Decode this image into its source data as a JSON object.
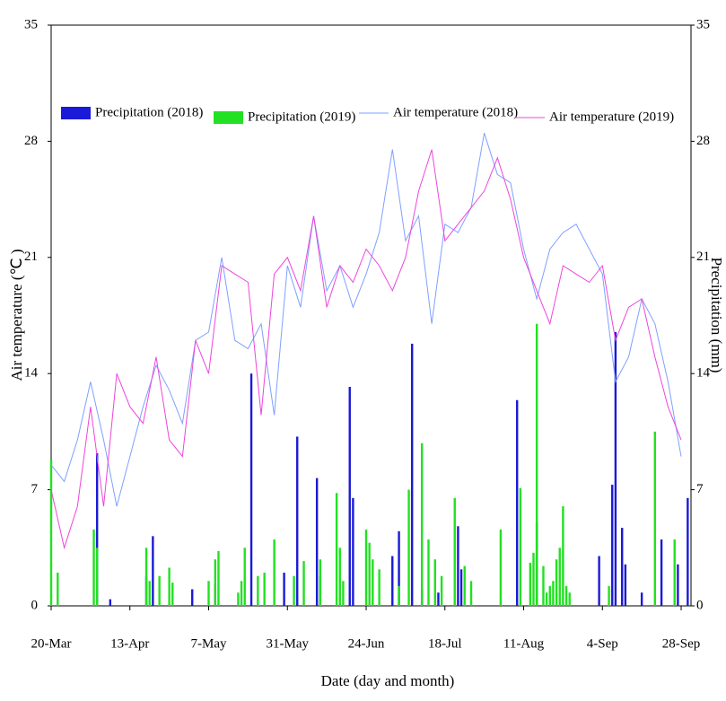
{
  "chart_data": {
    "type": "bar_line",
    "x_label": "Date (day and month)",
    "y_label": "Air temperature (℃ )",
    "y2_label": "Precipitation (mm)",
    "xlim": [
      0,
      195
    ],
    "xticks": [
      {
        "value": 0,
        "label": "20-Mar"
      },
      {
        "value": 24,
        "label": "13-Apr"
      },
      {
        "value": 48,
        "label": "7-May"
      },
      {
        "value": 72,
        "label": "31-May"
      },
      {
        "value": 96,
        "label": "24-Jun"
      },
      {
        "value": 120,
        "label": "18-Jul"
      },
      {
        "value": 144,
        "label": "11-Aug"
      },
      {
        "value": 168,
        "label": "4-Sep"
      },
      {
        "value": 192,
        "label": "28-Sep"
      }
    ],
    "ylim": [
      0,
      35
    ],
    "yticks": [
      0,
      7,
      14,
      21,
      28,
      35
    ],
    "y2lim": [
      0,
      35
    ],
    "y2ticks": [
      0,
      7,
      14,
      21,
      28,
      35
    ],
    "legend": "top",
    "series": [
      {
        "name": "Precipitation  (2018)",
        "type": "bar",
        "axis": "y2",
        "color": "#1a1ad8",
        "x": [
          14,
          18,
          29,
          31,
          43,
          50,
          61,
          71,
          75,
          81,
          82,
          91,
          92,
          104,
          106,
          110,
          113,
          118,
          124,
          125,
          142,
          148,
          167,
          171,
          172,
          174,
          175,
          180,
          186,
          191,
          194
        ],
        "values": [
          9.2,
          0.4,
          1.8,
          4.2,
          1,
          1.3,
          14,
          2,
          10.2,
          7.7,
          1.8,
          13.2,
          6.5,
          3,
          4.5,
          15.8,
          1,
          0.8,
          4.8,
          2.2,
          12.4,
          5,
          3,
          7.3,
          16.5,
          4.7,
          2.5,
          0.8,
          4,
          2.5,
          6.5
        ]
      },
      {
        "name": "Precipitation  (2019)",
        "type": "bar",
        "axis": "y2",
        "color": "#22e022",
        "x": [
          0,
          2,
          13,
          14,
          29,
          30,
          33,
          36,
          37,
          48,
          50,
          51,
          57,
          58,
          59,
          63,
          65,
          68,
          74,
          77,
          82,
          87,
          88,
          89,
          96,
          97,
          98,
          100,
          106,
          109,
          113,
          115,
          117,
          119,
          123,
          126,
          128,
          137,
          143,
          146,
          147,
          148,
          150,
          151,
          152,
          153,
          154,
          155,
          156,
          157,
          158,
          170,
          184,
          190
        ],
        "values": [
          8.8,
          2,
          4.6,
          3.5,
          3.5,
          1.5,
          1.8,
          2.3,
          1.4,
          1.5,
          2.8,
          3.3,
          0.8,
          1.5,
          3.5,
          1.8,
          2,
          4,
          1.8,
          2.7,
          2.8,
          6.8,
          3.5,
          1.5,
          4.6,
          3.8,
          2.8,
          2.2,
          1.2,
          7,
          9.8,
          4,
          2.8,
          1.8,
          6.5,
          2.4,
          1.5,
          4.6,
          7.1,
          2.6,
          3.2,
          17,
          2.4,
          0.8,
          1.2,
          1.5,
          2.8,
          3.5,
          6,
          1.2,
          0.8,
          1.2,
          10.5,
          4
        ]
      },
      {
        "name": "Air temperature (2018)",
        "type": "line",
        "color": "#7fa0ff",
        "x": [
          0,
          4,
          8,
          12,
          16,
          20,
          24,
          28,
          32,
          36,
          40,
          44,
          48,
          52,
          56,
          60,
          64,
          68,
          72,
          76,
          80,
          84,
          88,
          92,
          96,
          100,
          104,
          108,
          112,
          116,
          120,
          124,
          128,
          132,
          136,
          140,
          144,
          148,
          152,
          156,
          160,
          164,
          168,
          172,
          176,
          180,
          184,
          188,
          192
        ],
        "values": [
          8.5,
          7.5,
          10,
          13.5,
          10,
          6,
          9,
          12,
          14.5,
          13,
          11,
          16,
          16.5,
          21,
          16,
          15.5,
          17,
          11.5,
          20.5,
          18,
          23.5,
          19,
          20.5,
          18,
          20,
          22.5,
          27.5,
          22,
          23.5,
          17,
          23,
          22.5,
          24,
          28.5,
          26,
          25.5,
          21.5,
          18.5,
          21.5,
          22.5,
          23,
          21.5,
          20,
          13.5,
          15,
          18.5,
          17,
          13.5,
          9
        ]
      },
      {
        "name": "Air temperature (2019)",
        "type": "line",
        "color": "#ee44dd",
        "x": [
          0,
          4,
          8,
          12,
          16,
          20,
          24,
          28,
          32,
          36,
          40,
          44,
          48,
          52,
          56,
          60,
          64,
          68,
          72,
          76,
          80,
          84,
          88,
          92,
          96,
          100,
          104,
          108,
          112,
          116,
          120,
          124,
          128,
          132,
          136,
          140,
          144,
          148,
          152,
          156,
          160,
          164,
          168,
          172,
          176,
          180,
          184,
          188,
          192
        ],
        "values": [
          7,
          3.5,
          6,
          12,
          6,
          14,
          12,
          11,
          15,
          10,
          9,
          16,
          14,
          20.5,
          20,
          19.5,
          11.5,
          20,
          21,
          19,
          23.5,
          18,
          20.5,
          19.5,
          21.5,
          20.5,
          19,
          21,
          25,
          27.5,
          22,
          23,
          24,
          25,
          27,
          24.5,
          21,
          19,
          17,
          20.5,
          20,
          19.5,
          20.5,
          16,
          18,
          18.5,
          15,
          12,
          10
        ]
      }
    ]
  }
}
